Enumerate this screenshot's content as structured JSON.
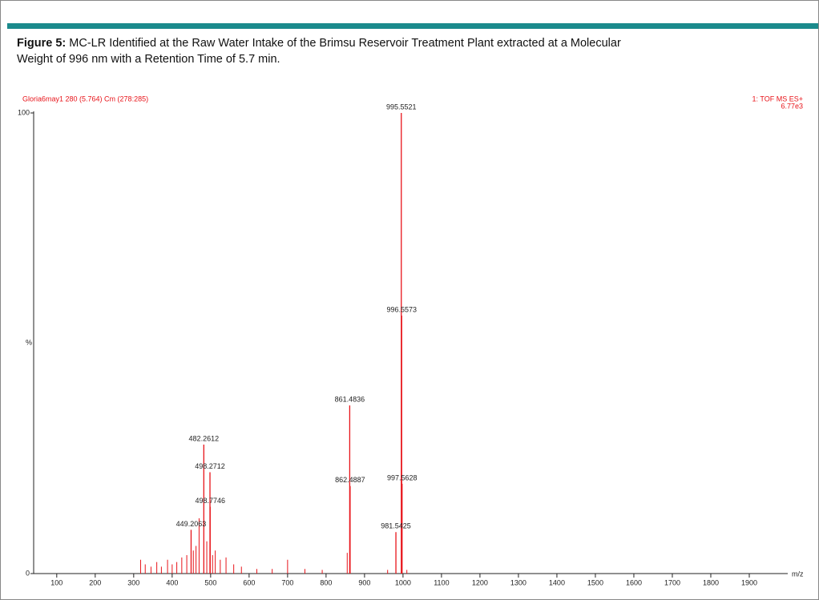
{
  "caption": {
    "label": "Figure 5:",
    "text": "MC-LR Identified at the Raw Water Intake of the Brimsu Reservoir Treatment Plant extracted at a Molecular",
    "text2": "Weight of 996 nm with a Retention Time of 5.7 min."
  },
  "chart_data": {
    "type": "spectrum",
    "header_left": "Gloria6may1 280 (5.764) Cm (278:285)",
    "header_right": "1: TOF MS ES+",
    "header_right2": "6.77e3",
    "ylabel": "%",
    "xlabel": "m/z",
    "color": "#e8141a",
    "x": [
      995.5521,
      996.5573,
      861.4836,
      482.2612,
      498.2712,
      862.4887,
      997.5628,
      498.7746,
      449.2063,
      981.5425
    ],
    "values": [
      100,
      56,
      36.5,
      28,
      22,
      19,
      19.5,
      14.5,
      9.5,
      9
    ],
    "minor_x": [
      318,
      330,
      345,
      360,
      372,
      388,
      400,
      412,
      425,
      438,
      455,
      462,
      470,
      490,
      505,
      512,
      525,
      540,
      560,
      580,
      620,
      660,
      700,
      745,
      790,
      855,
      960,
      1010
    ],
    "minor_values": [
      3,
      2,
      1.5,
      2.5,
      1.5,
      3,
      2,
      2.5,
      3.5,
      4,
      5,
      6,
      12,
      7,
      4,
      5,
      3,
      3.5,
      2,
      1.5,
      1,
      1,
      3,
      1,
      0.8,
      4.5,
      0.8,
      0.8
    ],
    "xlim": [
      40,
      2000
    ],
    "ylim": [
      0,
      100
    ],
    "xticks": [
      100,
      200,
      300,
      400,
      500,
      600,
      700,
      800,
      900,
      1000,
      1100,
      1200,
      1300,
      1400,
      1500,
      1600,
      1700,
      1800,
      1900
    ],
    "yticks": [
      0,
      100
    ]
  }
}
